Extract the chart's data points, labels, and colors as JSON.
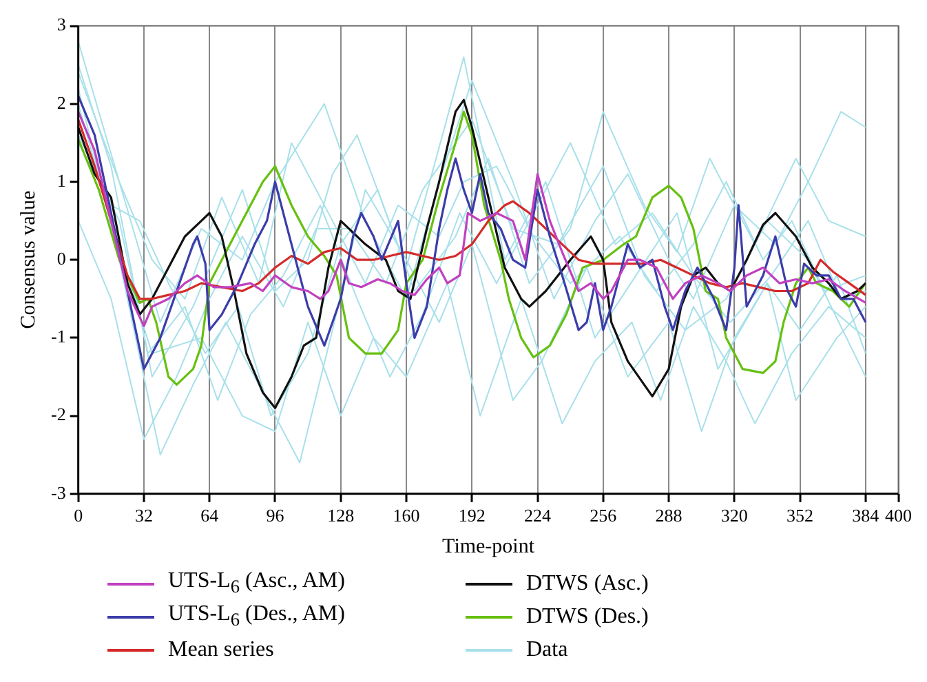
{
  "chart_data": {
    "type": "line",
    "xlabel": "Time-point",
    "ylabel": "Consensus value",
    "xlim": [
      0,
      400
    ],
    "xticks": [
      0,
      32,
      64,
      96,
      128,
      160,
      192,
      224,
      256,
      288,
      320,
      352,
      384,
      400
    ],
    "ylim": [
      -3,
      3
    ],
    "yticks": [
      -3,
      -2,
      -1,
      0,
      1,
      2,
      3
    ],
    "grid": "x",
    "legend": "bottom",
    "marker": "none",
    "line_style": "solid",
    "series": [
      {
        "name": "UTS-L$_{6}$ (Asc., AM)",
        "color": "#c040c0",
        "x": [
          0,
          8,
          16,
          24,
          32,
          36,
          44,
          52,
          58,
          66,
          74,
          84,
          90,
          96,
          104,
          112,
          118,
          122,
          128,
          132,
          138,
          146,
          152,
          158,
          164,
          170,
          176,
          180,
          186,
          190,
          196,
          204,
          212,
          218,
          224,
          230,
          236,
          244,
          250,
          256,
          260,
          268,
          274,
          282,
          290,
          296,
          304,
          312,
          318,
          326,
          334,
          342,
          350,
          358,
          366,
          374,
          384
        ],
        "values": [
          1.9,
          1.4,
          0.5,
          -0.4,
          -0.85,
          -0.6,
          -0.5,
          -0.3,
          -0.2,
          -0.35,
          -0.35,
          -0.3,
          -0.4,
          -0.2,
          -0.35,
          -0.4,
          -0.5,
          -0.4,
          0.0,
          -0.3,
          -0.35,
          -0.25,
          -0.3,
          -0.4,
          -0.45,
          -0.25,
          -0.1,
          -0.3,
          -0.2,
          0.6,
          0.5,
          0.6,
          0.5,
          0.0,
          1.1,
          0.5,
          0.1,
          -0.4,
          -0.3,
          -0.5,
          -0.4,
          0.0,
          0.0,
          -0.1,
          -0.5,
          -0.3,
          -0.2,
          -0.3,
          -0.4,
          -0.2,
          -0.1,
          -0.3,
          -0.25,
          -0.3,
          -0.25,
          -0.4,
          -0.55
        ]
      },
      {
        "name": "UTS-L$_{6}$ (Des., AM)",
        "color": "#3c3caa",
        "x": [
          0,
          8,
          16,
          24,
          32,
          40,
          48,
          56,
          58,
          62,
          64,
          70,
          78,
          86,
          92,
          96,
          104,
          112,
          120,
          128,
          134,
          138,
          144,
          148,
          156,
          160,
          164,
          170,
          176,
          180,
          184,
          188,
          192,
          196,
          200,
          206,
          212,
          218,
          224,
          230,
          236,
          244,
          248,
          252,
          256,
          260,
          268,
          274,
          280,
          286,
          290,
          296,
          302,
          310,
          316,
          320,
          322,
          326,
          334,
          340,
          346,
          350,
          354,
          360,
          366,
          372,
          378,
          384
        ],
        "values": [
          2.1,
          1.6,
          0.6,
          -0.4,
          -1.4,
          -1.0,
          -0.4,
          0.2,
          0.3,
          -0.05,
          -0.9,
          -0.7,
          -0.3,
          0.2,
          0.5,
          1.0,
          0.2,
          -0.6,
          -1.1,
          -0.5,
          0.3,
          0.6,
          0.3,
          0.0,
          0.5,
          -0.3,
          -1.0,
          -0.6,
          0.4,
          0.9,
          1.3,
          0.9,
          0.6,
          1.1,
          0.6,
          0.4,
          0.0,
          -0.1,
          0.9,
          0.3,
          -0.2,
          -0.9,
          -0.8,
          -0.3,
          -0.9,
          -0.6,
          0.2,
          -0.1,
          0.0,
          -0.6,
          -0.9,
          -0.4,
          -0.1,
          -0.5,
          -0.9,
          -0.1,
          0.7,
          -0.6,
          -0.2,
          0.3,
          -0.4,
          -0.6,
          -0.05,
          -0.2,
          -0.2,
          -0.5,
          -0.5,
          -0.8
        ]
      },
      {
        "name": "Mean series",
        "color": "#d42a2a",
        "x": [
          0,
          8,
          16,
          24,
          30,
          36,
          44,
          52,
          60,
          70,
          80,
          88,
          96,
          104,
          112,
          120,
          128,
          136,
          144,
          152,
          160,
          168,
          176,
          184,
          192,
          200,
          208,
          212,
          220,
          228,
          236,
          244,
          252,
          260,
          268,
          276,
          284,
          292,
          300,
          308,
          316,
          324,
          332,
          340,
          348,
          356,
          362,
          368,
          376,
          384
        ],
        "values": [
          1.8,
          1.2,
          0.5,
          -0.2,
          -0.5,
          -0.5,
          -0.45,
          -0.4,
          -0.3,
          -0.35,
          -0.4,
          -0.3,
          -0.1,
          0.05,
          -0.05,
          0.1,
          0.15,
          0.0,
          0.0,
          0.05,
          0.1,
          0.05,
          0.0,
          0.05,
          0.2,
          0.5,
          0.7,
          0.75,
          0.6,
          0.4,
          0.2,
          0.0,
          -0.05,
          -0.05,
          -0.05,
          -0.05,
          0.0,
          -0.1,
          -0.2,
          -0.3,
          -0.35,
          -0.3,
          -0.35,
          -0.4,
          -0.4,
          -0.3,
          0.0,
          -0.15,
          -0.3,
          -0.45
        ]
      },
      {
        "name": "DTWS (Asc.)",
        "color": "#111111",
        "x": [
          0,
          8,
          16,
          24,
          30,
          36,
          44,
          52,
          60,
          64,
          70,
          76,
          82,
          90,
          96,
          104,
          110,
          116,
          122,
          128,
          140,
          150,
          156,
          162,
          170,
          176,
          184,
          188,
          192,
          200,
          208,
          216,
          220,
          228,
          240,
          250,
          256,
          260,
          268,
          276,
          280,
          288,
          294,
          300,
          306,
          312,
          318,
          326,
          334,
          340,
          350,
          358,
          366,
          372,
          380,
          384
        ],
        "values": [
          1.7,
          1.1,
          0.8,
          -0.3,
          -0.7,
          -0.5,
          -0.1,
          0.3,
          0.5,
          0.6,
          0.3,
          -0.4,
          -1.2,
          -1.7,
          -1.9,
          -1.5,
          -1.1,
          -1.0,
          -0.1,
          0.5,
          0.2,
          0.0,
          -0.4,
          -0.5,
          0.4,
          1.0,
          1.9,
          2.05,
          1.7,
          0.8,
          -0.1,
          -0.5,
          -0.6,
          -0.4,
          0.0,
          0.3,
          0.0,
          -0.8,
          -1.3,
          -1.6,
          -1.75,
          -1.4,
          -0.6,
          -0.2,
          -0.1,
          -0.3,
          -0.4,
          0.0,
          0.45,
          0.6,
          0.3,
          -0.1,
          -0.3,
          -0.5,
          -0.4,
          -0.3
        ]
      },
      {
        "name": "DTWS (Des.)",
        "color": "#66c010",
        "x": [
          0,
          10,
          20,
          30,
          34,
          38,
          44,
          48,
          56,
          60,
          64,
          70,
          80,
          90,
          96,
          104,
          112,
          120,
          126,
          132,
          140,
          148,
          156,
          160,
          168,
          176,
          184,
          188,
          192,
          198,
          206,
          210,
          216,
          222,
          230,
          238,
          246,
          256,
          266,
          272,
          280,
          288,
          294,
          300,
          306,
          312,
          316,
          324,
          334,
          340,
          344,
          350,
          356,
          360,
          368,
          376,
          384
        ],
        "values": [
          1.55,
          0.9,
          0.0,
          -0.55,
          -0.5,
          -0.8,
          -1.5,
          -1.6,
          -1.4,
          -1.1,
          -0.3,
          0.0,
          0.5,
          1.0,
          1.2,
          0.7,
          0.3,
          0.05,
          -0.2,
          -1.0,
          -1.2,
          -1.2,
          -0.9,
          -0.3,
          0.0,
          0.8,
          1.5,
          1.9,
          1.6,
          0.7,
          0.0,
          -0.5,
          -1.0,
          -1.25,
          -1.1,
          -0.7,
          -0.1,
          0.0,
          0.2,
          0.3,
          0.8,
          0.95,
          0.8,
          0.4,
          -0.4,
          -0.5,
          -1.0,
          -1.4,
          -1.45,
          -1.3,
          -0.8,
          -0.3,
          -0.1,
          -0.3,
          -0.4,
          -0.6,
          -0.3
        ]
      },
      {
        "name": "Data",
        "color": "#a8e0ea",
        "x": [
          0,
          20,
          40,
          60,
          80,
          96,
          120,
          140,
          160,
          176,
          192,
          212,
          232,
          252,
          268,
          288,
          300,
          320,
          340,
          356,
          372,
          384
        ],
        "values": [
          2.8,
          1.0,
          -0.8,
          0.4,
          0.0,
          1.0,
          2.0,
          0.5,
          -0.5,
          1.0,
          2.3,
          1.0,
          -0.5,
          0.5,
          1.1,
          0.0,
          -0.5,
          0.7,
          0.2,
          1.0,
          1.9,
          1.7
        ]
      },
      {
        "color": "#a8e0ea",
        "x": [
          0,
          16,
          36,
          56,
          80,
          96,
          112,
          124,
          136,
          160,
          188,
          208,
          228,
          252,
          272,
          292,
          312,
          336,
          352,
          370,
          384
        ],
        "values": [
          2.5,
          1.2,
          -1.5,
          -0.6,
          0.9,
          -0.4,
          0.0,
          1.1,
          1.6,
          -0.1,
          2.6,
          0.0,
          1.0,
          -1.0,
          -0.2,
          0.6,
          -1.4,
          -0.3,
          -0.9,
          -0.2,
          -1.2
        ]
      },
      {
        "color": "#a8e0ea",
        "x": [
          0,
          16,
          32,
          48,
          64,
          80,
          100,
          116,
          132,
          150,
          168,
          192,
          212,
          234,
          256,
          276,
          296,
          316,
          336,
          356,
          384
        ],
        "values": [
          0.5,
          -0.5,
          -2.3,
          -1.5,
          -0.5,
          0.3,
          -0.6,
          0.4,
          0.4,
          -0.3,
          0.9,
          1.8,
          0.4,
          0.2,
          1.2,
          -0.2,
          -0.9,
          -0.5,
          0.5,
          0.0,
          -1.5
        ]
      },
      {
        "color": "#a8e0ea",
        "x": [
          0,
          20,
          40,
          56,
          72,
          90,
          108,
          124,
          140,
          160,
          176,
          192,
          212,
          226,
          248,
          268,
          288,
          304,
          320,
          336,
          350,
          370,
          384
        ],
        "values": [
          2.2,
          0.0,
          -2.5,
          -1.6,
          -0.8,
          -1.7,
          -2.6,
          -0.9,
          0.9,
          0.0,
          -0.8,
          0.2,
          -1.8,
          -1.3,
          -0.1,
          -1.5,
          -0.8,
          -2.2,
          -1.0,
          -0.3,
          -1.8,
          -1.0,
          -0.6
        ]
      },
      {
        "color": "#a8e0ea",
        "x": [
          0,
          18,
          36,
          60,
          80,
          96,
          112,
          128,
          144,
          160,
          180,
          196,
          216,
          236,
          252,
          270,
          284,
          300,
          316,
          330,
          348,
          366,
          384
        ],
        "values": [
          2.0,
          0.3,
          -1.2,
          -1.0,
          -2.0,
          -2.2,
          -0.8,
          -2.0,
          -1.0,
          -1.5,
          -0.3,
          -2.0,
          -0.5,
          -2.1,
          -1.3,
          -0.8,
          -1.8,
          -0.6,
          -1.3,
          -2.1,
          -1.2,
          -0.6,
          -1.0
        ]
      },
      {
        "color": "#a8e0ea",
        "x": [
          0,
          16,
          30,
          44,
          62,
          78,
          94,
          112,
          128,
          146,
          164,
          184,
          200,
          220,
          240,
          256,
          276,
          292,
          308,
          330,
          350,
          366,
          384
        ],
        "values": [
          1.5,
          0.7,
          0.5,
          -0.3,
          -1.2,
          -0.6,
          -2.0,
          -1.2,
          0.2,
          0.9,
          -0.4,
          0.3,
          1.3,
          -0.3,
          0.4,
          1.9,
          0.7,
          0.1,
          1.3,
          0.2,
          1.3,
          0.5,
          0.3
        ]
      },
      {
        "color": "#a8e0ea",
        "x": [
          0,
          20,
          36,
          52,
          70,
          88,
          104,
          124,
          140,
          156,
          176,
          188,
          204,
          222,
          240,
          264,
          282,
          300,
          316,
          334,
          348,
          364,
          384
        ],
        "values": [
          2.4,
          1.0,
          0.0,
          -0.5,
          0.8,
          -0.3,
          1.5,
          0.5,
          -0.3,
          0.7,
          0.3,
          1.0,
          1.2,
          0.3,
          -0.3,
          0.3,
          -0.4,
          0.2,
          1.0,
          0.0,
          0.5,
          -0.4,
          -0.2
        ]
      },
      {
        "color": "#a8e0ea",
        "x": [
          0,
          20,
          34,
          52,
          68,
          84,
          100,
          118,
          136,
          152,
          168,
          186,
          204,
          222,
          240,
          262,
          280,
          300,
          318,
          338,
          356,
          372,
          384
        ],
        "values": [
          1.6,
          0.5,
          -1.2,
          -0.6,
          -1.8,
          -0.7,
          -0.2,
          0.7,
          -0.5,
          -1.5,
          -0.7,
          0.6,
          -0.3,
          0.6,
          1.5,
          0.2,
          0.6,
          -0.2,
          -0.8,
          -0.2,
          0.5,
          -0.5,
          -0.4
        ]
      }
    ]
  }
}
